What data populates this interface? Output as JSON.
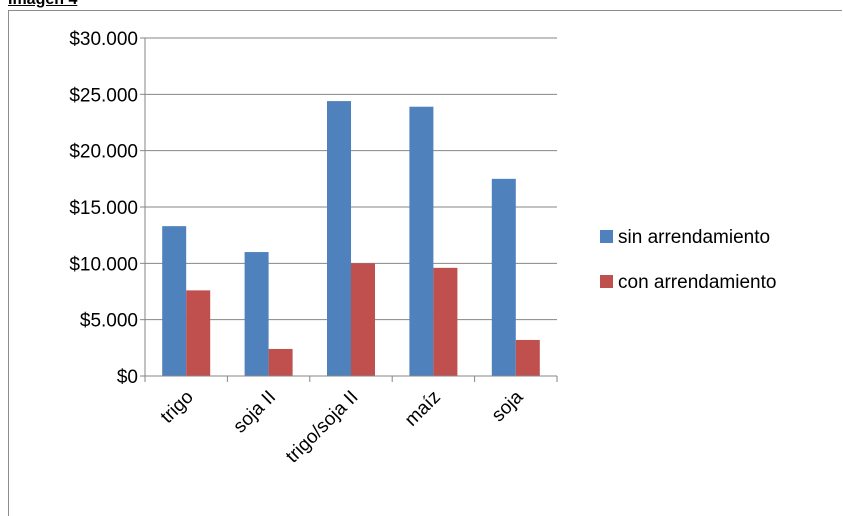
{
  "page": {
    "heading": "Imagen 4"
  },
  "chart_data": {
    "type": "bar",
    "categories": [
      "trigo",
      "soja II",
      "trigo/soja II",
      "maíz",
      "soja"
    ],
    "series": [
      {
        "name": "sin arrendamiento",
        "color": "#4f81bd",
        "values": [
          13300,
          11000,
          24400,
          23900,
          17500
        ]
      },
      {
        "name": "con arrendamiento",
        "color": "#c0504d",
        "values": [
          7600,
          2400,
          10000,
          9600,
          3200
        ]
      }
    ],
    "ylim": [
      0,
      30000
    ],
    "yticks": [
      0,
      5000,
      10000,
      15000,
      20000,
      25000,
      30000
    ],
    "ytick_labels": [
      "$0",
      "$5.000",
      "$10.000",
      "$15.000",
      "$20.000",
      "$25.000",
      "$30.000"
    ],
    "grid": true,
    "legend_position": "right",
    "title": "",
    "xlabel": "",
    "ylabel": ""
  }
}
